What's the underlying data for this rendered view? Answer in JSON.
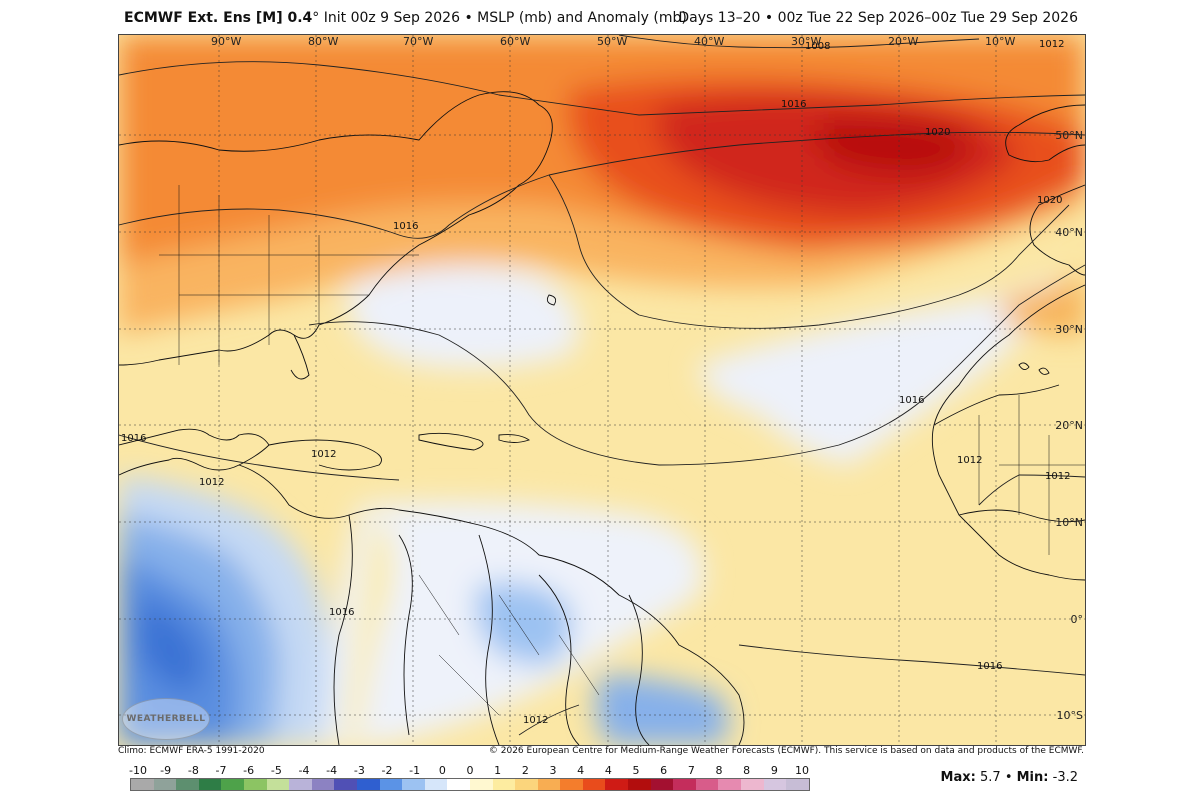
{
  "header": {
    "model": "ECMWF Ext.  Ens [M] 0.4",
    "model_suffix": "° Init 00z 9 Sep 2026 • MSLP (mb) and Anomaly (mb)",
    "period": "Days 13–20 • 00z Tue 22 Sep 2026–00z Tue 29 Sep 2026"
  },
  "map": {
    "lon_labels": [
      "90°W",
      "80°W",
      "70°W",
      "60°W",
      "50°W",
      "40°W",
      "30°W",
      "20°W",
      "10°W"
    ],
    "lat_labels": [
      "50°N",
      "40°N",
      "30°N",
      "20°N",
      "10°N",
      "0°",
      "10°S"
    ],
    "isobars": [
      "1008",
      "1012",
      "1016",
      "1020",
      "1016",
      "1012",
      "1016",
      "1012",
      "1016",
      "1012",
      "1016",
      "1012",
      "1020",
      "1012",
      "1016"
    ],
    "logo_text": "WEATHERBELL"
  },
  "credits": {
    "climo": "Climo: ECMWF ERA-5 1991-2020",
    "copyright": "© 2026 European Centre for Medium-Range Weather Forecasts (ECMWF). This service is based on data and products of the ECMWF."
  },
  "colorbar": {
    "labels": [
      "-10",
      "-9",
      "-8",
      "-7",
      "-6",
      "-5",
      "-4",
      "-4",
      "-3",
      "-2",
      "-1",
      "0",
      "0",
      "1",
      "2",
      "3",
      "4",
      "4",
      "5",
      "6",
      "7",
      "8",
      "8",
      "9",
      "10"
    ],
    "colors": [
      "#a9a9a9",
      "#8fa29a",
      "#5d8f6f",
      "#2e7d46",
      "#4ea24a",
      "#8cc463",
      "#c4e09a",
      "#b9b3d9",
      "#8c82c2",
      "#5050b5",
      "#2f5fd0",
      "#5b93e6",
      "#9cc2f2",
      "#d6e6fa",
      "#ffffff",
      "#fff8d0",
      "#fdeca0",
      "#fbd57c",
      "#f8ad52",
      "#f47d2c",
      "#e94c1c",
      "#cf1b15",
      "#b20d0d",
      "#a31030",
      "#c42d5c",
      "#d85c8a",
      "#e68ab0",
      "#edb7cf",
      "#d6c6e0",
      "#c7bdd6"
    ]
  },
  "stats": {
    "max_label": "Max:",
    "max": "5.7",
    "sep": "•",
    "min_label": "Min:",
    "min": "-3.2"
  }
}
